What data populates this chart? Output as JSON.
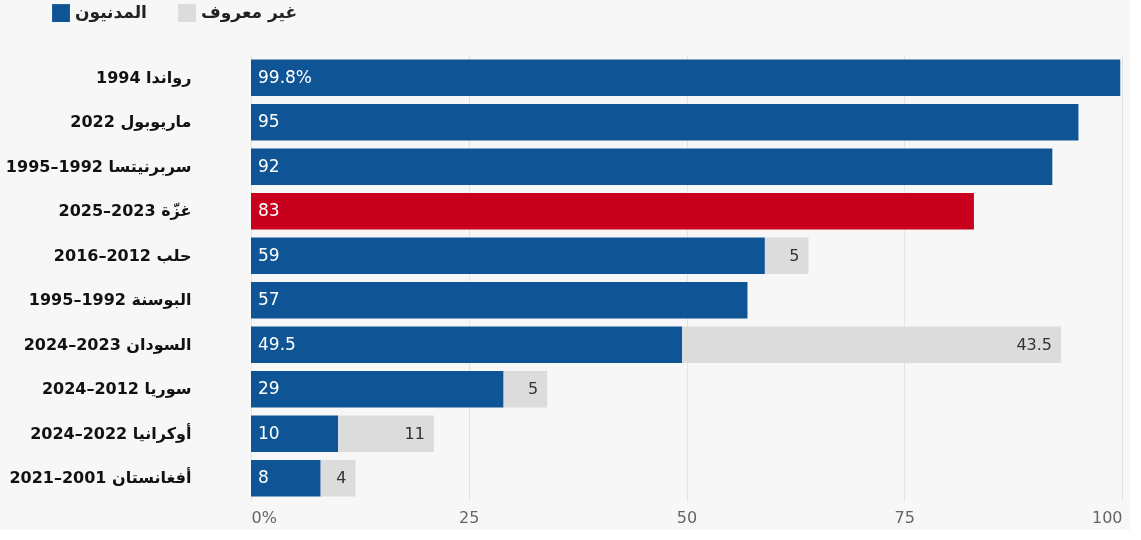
{
  "chart_data": {
    "type": "bar",
    "orientation": "horizontal",
    "stacked": true,
    "categories": [
      "رواندا 1994",
      "ماريوبول 2022",
      "سربرنيتسا 1992–1995",
      "غزّة 2023–2025",
      "حلب 2012–2016",
      "البوسنة 1992–1995",
      "السودان 2023–2024",
      "سوريا 2012–2024",
      "أوكرانيا 2022–2024",
      "أفغانستان 2001–2021"
    ],
    "series": [
      {
        "name": "المدنيون",
        "color": "#0f5595",
        "colors": [
          "#0f5595",
          "#0f5595",
          "#0f5595",
          "#c8001e",
          "#0f5595",
          "#0f5595",
          "#0f5595",
          "#0f5595",
          "#0f5595",
          "#0f5595"
        ],
        "values": [
          99.8,
          95,
          92,
          83,
          59,
          57,
          49.5,
          29,
          10,
          8
        ],
        "value_labels": [
          "99.8%",
          "95",
          "92",
          "83",
          "59",
          "57",
          "49.5",
          "29",
          "10",
          "8"
        ]
      },
      {
        "name": "غير معروف",
        "color": "#dcdcdc",
        "values": [
          null,
          null,
          null,
          null,
          5,
          null,
          43.5,
          5,
          11,
          4
        ],
        "value_labels": [
          null,
          null,
          null,
          null,
          "5",
          null,
          "43.5",
          "5",
          "11",
          "4"
        ]
      }
    ],
    "xlim": [
      0,
      100
    ],
    "xticks": [
      {
        "value": 0,
        "label": "0%"
      },
      25,
      50,
      75,
      100
    ],
    "grid": "x",
    "legend": "top left"
  }
}
